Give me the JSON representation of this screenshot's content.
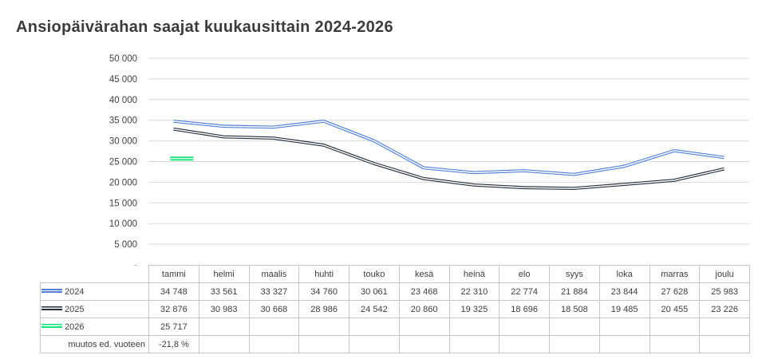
{
  "title": "Ansiopäivärahan saajat kuukausittain 2024-2026",
  "colors": {
    "series_2024": "#5080d7",
    "series_2025": "#232f3c",
    "series_2026": "#12e57c",
    "gridline": "#d9d9d9",
    "table_border": "#c6c6c6",
    "text": "#3d3d3d"
  },
  "chart_data": {
    "type": "line",
    "title": "Ansiopäivärahan saajat kuukausittain 2024-2026",
    "categories": [
      "tammi",
      "helmi",
      "maalis",
      "huhti",
      "touko",
      "kesä",
      "heinä",
      "elo",
      "syys",
      "loka",
      "marras",
      "joulu"
    ],
    "series": [
      {
        "name": "2024",
        "color": "#5080d7",
        "values": [
          34748,
          33561,
          33327,
          34760,
          30061,
          23468,
          22310,
          22774,
          21884,
          23844,
          27628,
          25983
        ]
      },
      {
        "name": "2025",
        "color": "#232f3c",
        "values": [
          32876,
          30983,
          30668,
          28986,
          24542,
          20860,
          19325,
          18696,
          18508,
          19485,
          20455,
          23226
        ]
      },
      {
        "name": "2026",
        "color": "#12e57c",
        "values": [
          25717,
          null,
          null,
          null,
          null,
          null,
          null,
          null,
          null,
          null,
          null,
          null
        ]
      }
    ],
    "ylim": [
      0,
      50000
    ],
    "ytick_step": 5000,
    "ytick_labels_bottom_to_top": [
      "-",
      "5 000",
      "10 000",
      "15 000",
      "20 000",
      "25 000",
      "30 000",
      "35 000",
      "40 000",
      "45 000",
      "50 000"
    ],
    "xlabel": "",
    "ylabel": "",
    "grid": true,
    "legend_position": "data-table-left"
  },
  "table": {
    "row_labels": [
      "2024",
      "2025",
      "2026",
      "muutos ed. vuoteen"
    ],
    "cells": [
      [
        "34 748",
        "33 561",
        "33 327",
        "34 760",
        "30 061",
        "23 468",
        "22 310",
        "22 774",
        "21 884",
        "23 844",
        "27 628",
        "25 983"
      ],
      [
        "32 876",
        "30 983",
        "30 668",
        "28 986",
        "24 542",
        "20 860",
        "19 325",
        "18 696",
        "18 508",
        "19 485",
        "20 455",
        "23 226"
      ],
      [
        "25 717",
        "",
        "",
        "",
        "",
        "",
        "",
        "",
        "",
        "",
        "",
        ""
      ],
      [
        "-21,8 %",
        "",
        "",
        "",
        "",
        "",
        "",
        "",
        "",
        "",
        "",
        ""
      ]
    ]
  }
}
